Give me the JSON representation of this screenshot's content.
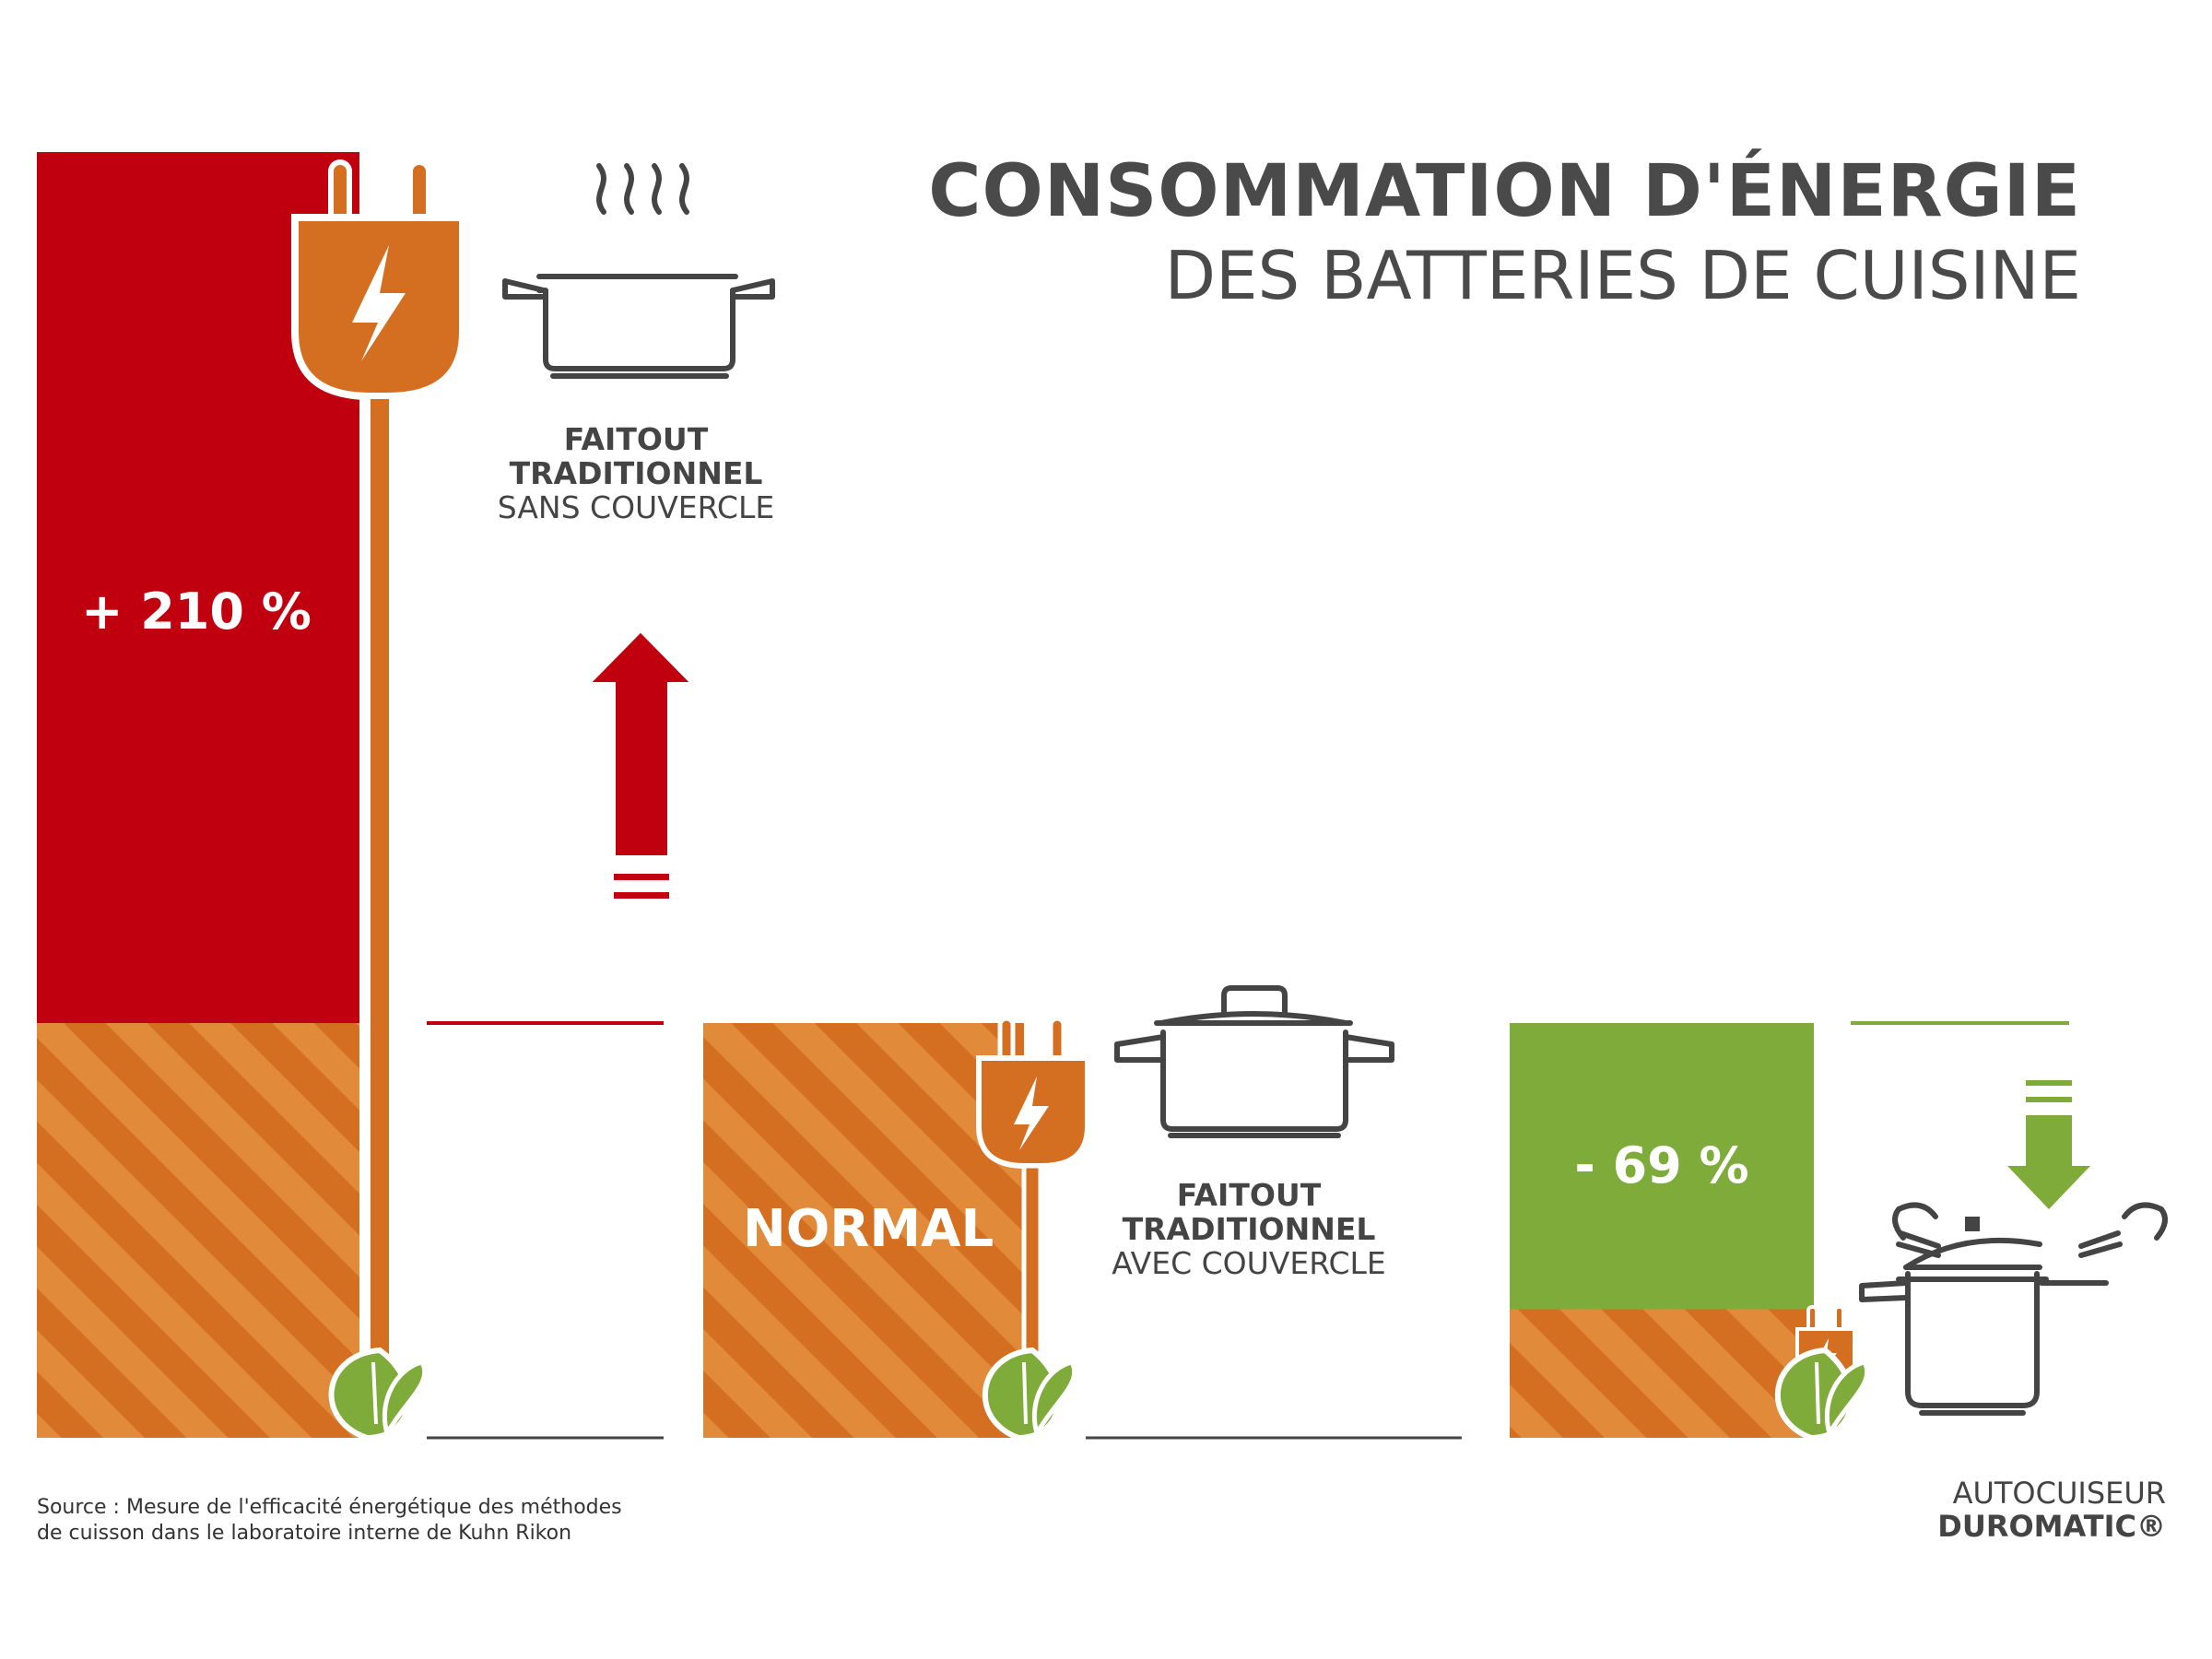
{
  "title": {
    "line1": "CONSOMMATION D'ÉNERGIE",
    "line2": "DES BATTERIES DE CUISINE"
  },
  "chart_data": {
    "type": "bar",
    "categories": [
      "FAITOUT TRADITIONNEL SANS COUVERCLE",
      "FAITOUT TRADITIONNEL AVEC COUVERCLE",
      "AUTOCUISEUR DUROMATIC®"
    ],
    "relative_energy": [
      3.1,
      1.0,
      0.31
    ],
    "data_labels": [
      "+ 210 %",
      "NORMAL",
      "- 69 %"
    ],
    "colors": {
      "increase": "#c0000f",
      "baseline": "#d46f22",
      "baseline_stripe": "#e08a3a",
      "decrease": "#7fab3a",
      "plug": "#d46f22",
      "leaf": "#7fab3a",
      "text": "#4a4a4a"
    }
  },
  "items": [
    {
      "name_bold": "FAITOUT",
      "name_bold2": "TRADITIONNEL",
      "name_regular": "SANS COUVERCLE"
    },
    {
      "name_bold": "FAITOUT",
      "name_bold2": "TRADITIONNEL",
      "name_regular": "AVEC COUVERCLE"
    },
    {
      "name_regular": "AUTOCUISEUR",
      "name_bold": "DUROMATIC®"
    }
  ],
  "source": {
    "line1": "Source : Mesure de l'efficacité énergétique des méthodes",
    "line2": "de cuisson dans le laboratoire interne de Kuhn Rikon"
  }
}
